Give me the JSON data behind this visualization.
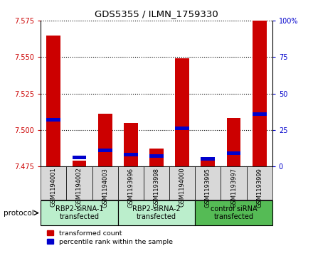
{
  "title": "GDS5355 / ILMN_1759330",
  "samples": [
    "GSM1194001",
    "GSM1194002",
    "GSM1194003",
    "GSM1193996",
    "GSM1193998",
    "GSM1194000",
    "GSM1193995",
    "GSM1193997",
    "GSM1193999"
  ],
  "red_values": [
    7.565,
    7.479,
    7.511,
    7.505,
    7.487,
    7.549,
    7.48,
    7.508,
    7.575
  ],
  "blue_values": [
    7.507,
    7.481,
    7.486,
    7.483,
    7.482,
    7.501,
    7.48,
    7.484,
    7.511
  ],
  "ymin": 7.475,
  "ymax": 7.575,
  "yticks": [
    7.475,
    7.5,
    7.525,
    7.55,
    7.575
  ],
  "right_yticks": [
    0,
    25,
    50,
    75,
    100
  ],
  "groups": [
    {
      "label": "RBP2-siRNA-1\ntransfected",
      "start": 0,
      "end": 3,
      "color": "#bbeecc"
    },
    {
      "label": "RBP2-siRNA-2\ntransfected",
      "start": 3,
      "end": 6,
      "color": "#bbeecc"
    },
    {
      "label": "control siRNA\ntransfected",
      "start": 6,
      "end": 9,
      "color": "#55bb55"
    }
  ],
  "bar_width": 0.55,
  "red_color": "#cc0000",
  "blue_color": "#0000cc",
  "left_tick_color": "#cc0000",
  "right_tick_color": "#0000cc",
  "bg_color": "#ffffff",
  "sample_bg": "#d8d8d8",
  "legend_red": "transformed count",
  "legend_blue": "percentile rank within the sample",
  "protocol_label": "protocol"
}
